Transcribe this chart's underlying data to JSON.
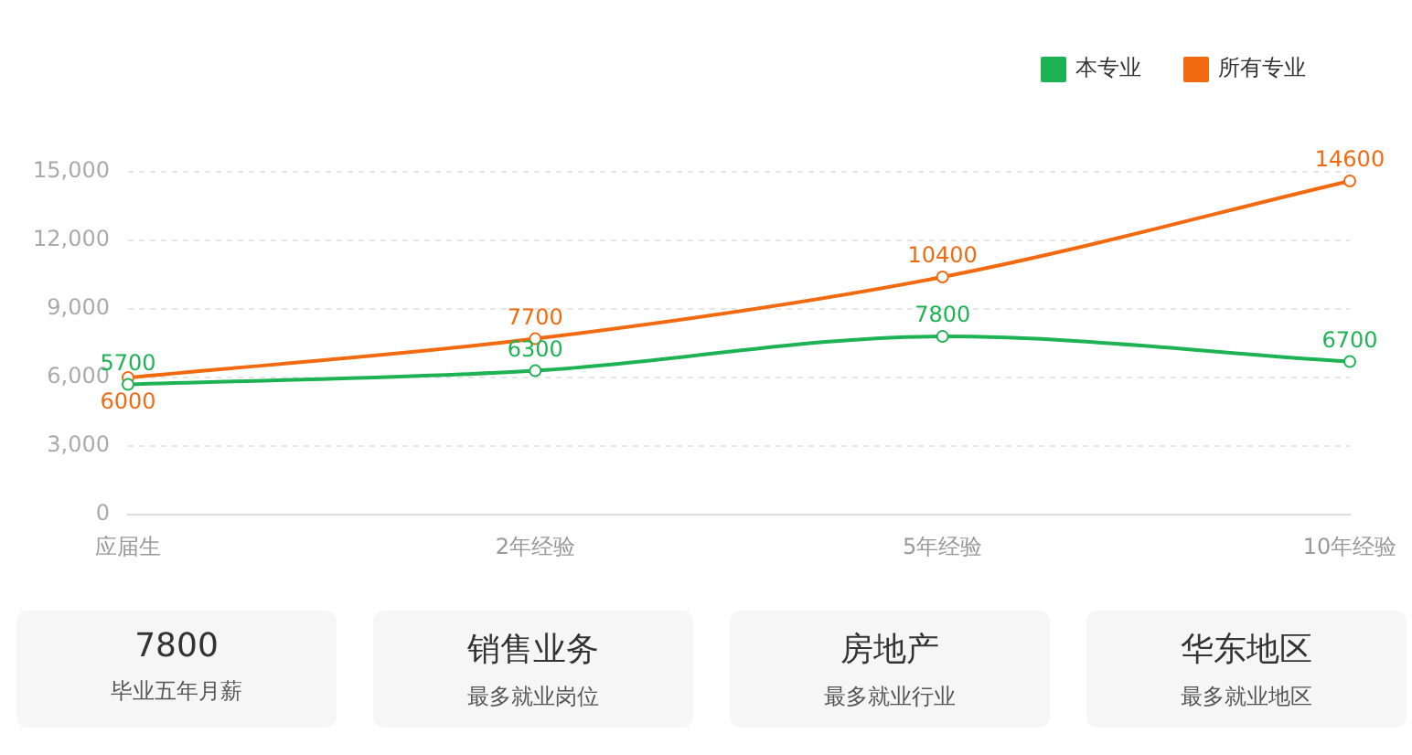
{
  "chart_data": [
    {
      "type": "line",
      "categories": [
        "应届生",
        "2年经验",
        "5年经验",
        "10年经验"
      ],
      "series": [
        {
          "name": "本专业",
          "color": "#1db354",
          "values": [
            5700,
            6300,
            7800,
            6700
          ]
        },
        {
          "name": "所有专业",
          "color": "#f26a10",
          "values": [
            6000,
            7700,
            10400,
            14600
          ]
        }
      ],
      "ylim": [
        0,
        15000
      ],
      "yticks": [
        0,
        {
          "value": 3000,
          "label": "3,000"
        },
        {
          "value": 6000,
          "label": "6,000"
        },
        {
          "value": 9000,
          "label": "9,000"
        },
        {
          "value": 12000,
          "label": "12,000"
        },
        {
          "value": 15000,
          "label": "15,000"
        }
      ],
      "grid": "y",
      "legend": "top right",
      "marker": "circle",
      "data_labels": true
    },
    {
      "type": "other",
      "title": "7800",
      "subtitle": "毕业五年月薪"
    },
    {
      "type": "other",
      "title": "销售业务",
      "subtitle": "最多就业岗位"
    },
    {
      "type": "other",
      "title": "房地产",
      "subtitle": "最多就业行业"
    },
    {
      "type": "other",
      "title": "华东地区",
      "subtitle": "最多就业地区"
    }
  ]
}
